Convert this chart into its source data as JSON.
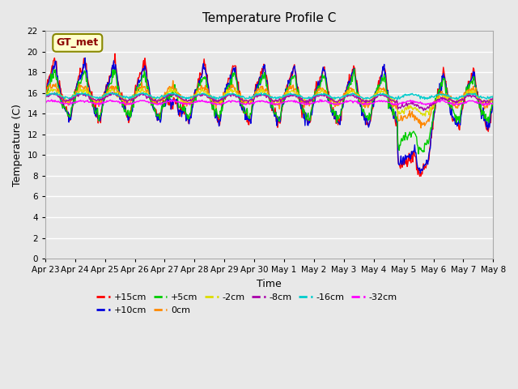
{
  "title": "Temperature Profile C",
  "xlabel": "Time",
  "ylabel": "Temperature (C)",
  "ylim": [
    0,
    22
  ],
  "yticks": [
    0,
    2,
    4,
    6,
    8,
    10,
    12,
    14,
    16,
    18,
    20,
    22
  ],
  "xtick_labels": [
    "Apr 23",
    "Apr 24",
    "Apr 25",
    "Apr 26",
    "Apr 27",
    "Apr 28",
    "Apr 29",
    "Apr 30",
    "May 1",
    "May 2",
    "May 3",
    "May 4",
    "May 5",
    "May 6",
    "May 7",
    "May 8"
  ],
  "series_colors": {
    "+15cm": "#ff0000",
    "+10cm": "#0000dd",
    "+5cm": "#00cc00",
    "0cm": "#ff8800",
    "-2cm": "#dddd00",
    "-8cm": "#aa00aa",
    "-16cm": "#00cccc",
    "-32cm": "#ff00ff"
  },
  "background_color": "#e8e8e8",
  "plot_bg_color": "#e8e8e8",
  "grid_color": "#ffffff",
  "annotation_text": "GT_met",
  "n_points": 720,
  "n_days": 15,
  "figsize": [
    6.4,
    4.8
  ],
  "dpi": 100
}
